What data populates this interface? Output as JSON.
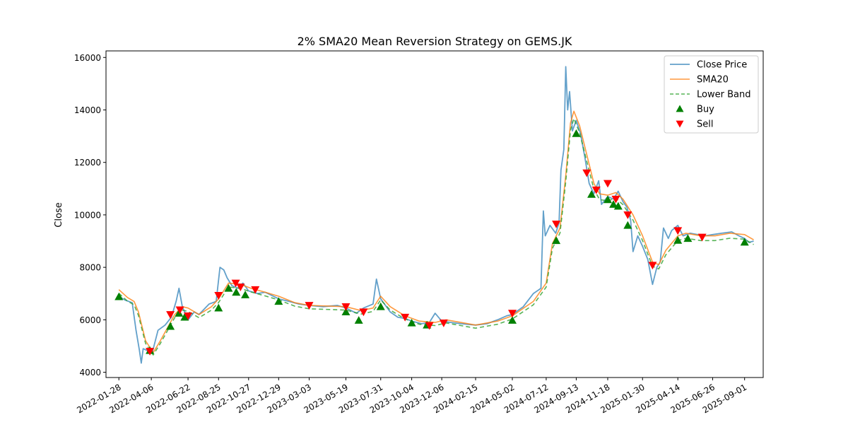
{
  "chart_data": {
    "type": "line",
    "title": "2% SMA20 Mean Reversion Strategy on GEMS.JK",
    "xlabel": "",
    "ylabel": "Close",
    "x_axis_type": "date",
    "xlim": [
      "2022-01-01",
      "2025-10-10"
    ],
    "ylim": [
      3800,
      16250
    ],
    "yticks": [
      4000,
      6000,
      8000,
      10000,
      12000,
      14000,
      16000
    ],
    "xticks": [
      "2022-01-28",
      "2022-04-06",
      "2022-06-22",
      "2022-08-25",
      "2022-10-27",
      "2022-12-29",
      "2023-03-03",
      "2023-05-19",
      "2023-07-31",
      "2023-10-04",
      "2023-12-06",
      "2024-02-15",
      "2024-05-02",
      "2024-07-12",
      "2024-09-13",
      "2024-11-18",
      "2025-01-30",
      "2025-04-14",
      "2025-06-26",
      "2025-09-01"
    ],
    "grid": false,
    "legend_position": "upper right",
    "legend": [
      "Close Price",
      "SMA20",
      "Lower Band",
      "Buy",
      "Sell"
    ],
    "colors": {
      "close": "#1f77b4",
      "sma": "#ff7f0e",
      "lower": "#2ca02c",
      "buy": "#008000",
      "sell": "#ff0000"
    },
    "series": [
      {
        "name": "Close Price",
        "style": "solid",
        "points": [
          [
            "2022-01-28",
            6900
          ],
          [
            "2022-02-10",
            6750
          ],
          [
            "2022-02-25",
            6650
          ],
          [
            "2022-03-05",
            5600
          ],
          [
            "2022-03-12",
            4850
          ],
          [
            "2022-03-16",
            4350
          ],
          [
            "2022-03-20",
            4900
          ],
          [
            "2022-04-01",
            4800
          ],
          [
            "2022-04-08",
            4750
          ],
          [
            "2022-04-20",
            5600
          ],
          [
            "2022-05-05",
            5800
          ],
          [
            "2022-05-18",
            6100
          ],
          [
            "2022-05-28",
            6700
          ],
          [
            "2022-06-03",
            7200
          ],
          [
            "2022-06-10",
            6500
          ],
          [
            "2022-06-22",
            6000
          ],
          [
            "2022-07-05",
            6300
          ],
          [
            "2022-07-15",
            6200
          ],
          [
            "2022-08-05",
            6600
          ],
          [
            "2022-08-20",
            6700
          ],
          [
            "2022-08-28",
            8000
          ],
          [
            "2022-09-05",
            7900
          ],
          [
            "2022-09-12",
            7600
          ],
          [
            "2022-09-22",
            7300
          ],
          [
            "2022-10-05",
            7200
          ],
          [
            "2022-10-15",
            7400
          ],
          [
            "2022-10-27",
            7100
          ],
          [
            "2022-11-15",
            7000
          ],
          [
            "2022-12-01",
            7050
          ],
          [
            "2022-12-29",
            6800
          ],
          [
            "2023-01-20",
            6700
          ],
          [
            "2023-02-10",
            6600
          ],
          [
            "2023-03-03",
            6550
          ],
          [
            "2023-04-01",
            6500
          ],
          [
            "2023-05-01",
            6550
          ],
          [
            "2023-05-19",
            6450
          ],
          [
            "2023-06-10",
            6250
          ],
          [
            "2023-06-25",
            6450
          ],
          [
            "2023-07-15",
            6600
          ],
          [
            "2023-07-22",
            7550
          ],
          [
            "2023-07-31",
            6800
          ],
          [
            "2023-08-20",
            6300
          ],
          [
            "2023-09-05",
            6100
          ],
          [
            "2023-09-20",
            6050
          ],
          [
            "2023-10-04",
            5950
          ],
          [
            "2023-10-25",
            5850
          ],
          [
            "2023-11-10",
            5900
          ],
          [
            "2023-11-22",
            6250
          ],
          [
            "2023-12-06",
            5950
          ],
          [
            "2023-12-25",
            5900
          ],
          [
            "2024-01-15",
            5850
          ],
          [
            "2024-02-15",
            5800
          ],
          [
            "2024-03-10",
            5850
          ],
          [
            "2024-04-01",
            6000
          ],
          [
            "2024-04-20",
            6150
          ],
          [
            "2024-05-02",
            6200
          ],
          [
            "2024-05-25",
            6500
          ],
          [
            "2024-06-15",
            7000
          ],
          [
            "2024-07-01",
            7200
          ],
          [
            "2024-07-06",
            10150
          ],
          [
            "2024-07-10",
            9200
          ],
          [
            "2024-07-20",
            9600
          ],
          [
            "2024-08-01",
            9300
          ],
          [
            "2024-08-08",
            9700
          ],
          [
            "2024-08-12",
            11700
          ],
          [
            "2024-08-18",
            12500
          ],
          [
            "2024-08-22",
            15650
          ],
          [
            "2024-08-26",
            14000
          ],
          [
            "2024-08-30",
            14700
          ],
          [
            "2024-09-05",
            13200
          ],
          [
            "2024-09-13",
            13600
          ],
          [
            "2024-09-22",
            13100
          ],
          [
            "2024-10-01",
            12200
          ],
          [
            "2024-10-10",
            11200
          ],
          [
            "2024-10-20",
            10800
          ],
          [
            "2024-10-30",
            11300
          ],
          [
            "2024-11-05",
            10400
          ],
          [
            "2024-11-18",
            10700
          ],
          [
            "2024-11-30",
            10600
          ],
          [
            "2024-12-10",
            10900
          ],
          [
            "2024-12-20",
            10500
          ],
          [
            "2024-12-28",
            10300
          ],
          [
            "2025-01-05",
            9800
          ],
          [
            "2025-01-10",
            8600
          ],
          [
            "2025-01-20",
            9200
          ],
          [
            "2025-01-30",
            8800
          ],
          [
            "2025-02-10",
            8300
          ],
          [
            "2025-02-20",
            7350
          ],
          [
            "2025-03-01",
            8000
          ],
          [
            "2025-03-08",
            8200
          ],
          [
            "2025-03-15",
            9500
          ],
          [
            "2025-03-25",
            9100
          ],
          [
            "2025-04-01",
            9400
          ],
          [
            "2025-04-14",
            9600
          ],
          [
            "2025-04-25",
            9200
          ],
          [
            "2025-05-10",
            9300
          ],
          [
            "2025-05-25",
            9250
          ],
          [
            "2025-06-10",
            9200
          ],
          [
            "2025-06-26",
            9250
          ],
          [
            "2025-07-15",
            9300
          ],
          [
            "2025-08-05",
            9350
          ],
          [
            "2025-08-20",
            9200
          ],
          [
            "2025-09-01",
            9100
          ],
          [
            "2025-09-10",
            8950
          ],
          [
            "2025-09-20",
            9000
          ]
        ]
      },
      {
        "name": "SMA20",
        "style": "solid",
        "points": [
          [
            "2022-01-28",
            7150
          ],
          [
            "2022-02-15",
            6850
          ],
          [
            "2022-03-01",
            6700
          ],
          [
            "2022-03-10",
            6300
          ],
          [
            "2022-03-25",
            5200
          ],
          [
            "2022-04-10",
            4750
          ],
          [
            "2022-04-25",
            5200
          ],
          [
            "2022-05-10",
            5700
          ],
          [
            "2022-05-25",
            6200
          ],
          [
            "2022-06-10",
            6500
          ],
          [
            "2022-06-22",
            6450
          ],
          [
            "2022-07-15",
            6200
          ],
          [
            "2022-08-10",
            6500
          ],
          [
            "2022-08-25",
            6800
          ],
          [
            "2022-09-15",
            7400
          ],
          [
            "2022-10-10",
            7350
          ],
          [
            "2022-11-01",
            7200
          ],
          [
            "2022-12-01",
            7050
          ],
          [
            "2022-12-29",
            6900
          ],
          [
            "2023-02-01",
            6650
          ],
          [
            "2023-03-03",
            6550
          ],
          [
            "2023-05-19",
            6500
          ],
          [
            "2023-06-20",
            6350
          ],
          [
            "2023-07-15",
            6450
          ],
          [
            "2023-07-31",
            6900
          ],
          [
            "2023-08-20",
            6500
          ],
          [
            "2023-09-20",
            6150
          ],
          [
            "2023-10-20",
            5950
          ],
          [
            "2023-11-22",
            5900
          ],
          [
            "2023-12-15",
            6000
          ],
          [
            "2024-01-15",
            5900
          ],
          [
            "2024-02-15",
            5800
          ],
          [
            "2024-04-01",
            5950
          ],
          [
            "2024-05-02",
            6150
          ],
          [
            "2024-06-15",
            6700
          ],
          [
            "2024-07-12",
            7400
          ],
          [
            "2024-07-25",
            8900
          ],
          [
            "2024-08-10",
            9500
          ],
          [
            "2024-08-22",
            11500
          ],
          [
            "2024-09-01",
            13500
          ],
          [
            "2024-09-08",
            13950
          ],
          [
            "2024-09-20",
            13400
          ],
          [
            "2024-10-05",
            12300
          ],
          [
            "2024-10-20",
            11200
          ],
          [
            "2024-11-01",
            10800
          ],
          [
            "2024-11-18",
            10750
          ],
          [
            "2024-12-05",
            10850
          ],
          [
            "2024-12-20",
            10600
          ],
          [
            "2025-01-10",
            10000
          ],
          [
            "2025-01-30",
            9200
          ],
          [
            "2025-02-20",
            8200
          ],
          [
            "2025-03-05",
            8100
          ],
          [
            "2025-03-20",
            8650
          ],
          [
            "2025-04-14",
            9200
          ],
          [
            "2025-05-01",
            9300
          ],
          [
            "2025-06-01",
            9200
          ],
          [
            "2025-07-01",
            9200
          ],
          [
            "2025-08-01",
            9300
          ],
          [
            "2025-09-01",
            9250
          ],
          [
            "2025-09-20",
            9050
          ]
        ]
      },
      {
        "name": "Lower Band",
        "style": "dashed",
        "points": [
          [
            "2022-01-28",
            7010
          ],
          [
            "2022-02-15",
            6710
          ],
          [
            "2022-03-01",
            6570
          ],
          [
            "2022-03-10",
            6170
          ],
          [
            "2022-03-25",
            5100
          ],
          [
            "2022-04-10",
            4660
          ],
          [
            "2022-04-25",
            5100
          ],
          [
            "2022-05-10",
            5590
          ],
          [
            "2022-05-25",
            6080
          ],
          [
            "2022-06-10",
            6370
          ],
          [
            "2022-06-22",
            6320
          ],
          [
            "2022-07-15",
            6080
          ],
          [
            "2022-08-10",
            6370
          ],
          [
            "2022-08-25",
            6660
          ],
          [
            "2022-09-15",
            7250
          ],
          [
            "2022-10-10",
            7200
          ],
          [
            "2022-11-01",
            7060
          ],
          [
            "2022-12-01",
            6910
          ],
          [
            "2022-12-29",
            6760
          ],
          [
            "2023-02-01",
            6520
          ],
          [
            "2023-03-03",
            6420
          ],
          [
            "2023-05-19",
            6370
          ],
          [
            "2023-06-20",
            6220
          ],
          [
            "2023-07-15",
            6320
          ],
          [
            "2023-07-31",
            6760
          ],
          [
            "2023-08-20",
            6370
          ],
          [
            "2023-09-20",
            6030
          ],
          [
            "2023-10-20",
            5830
          ],
          [
            "2023-11-22",
            5780
          ],
          [
            "2023-12-15",
            5880
          ],
          [
            "2024-01-15",
            5780
          ],
          [
            "2024-02-15",
            5680
          ],
          [
            "2024-04-01",
            5830
          ],
          [
            "2024-05-02",
            6030
          ],
          [
            "2024-06-15",
            6570
          ],
          [
            "2024-07-12",
            7250
          ],
          [
            "2024-07-25",
            8720
          ],
          [
            "2024-08-10",
            9310
          ],
          [
            "2024-08-22",
            11270
          ],
          [
            "2024-09-01",
            13230
          ],
          [
            "2024-09-08",
            13670
          ],
          [
            "2024-09-20",
            13130
          ],
          [
            "2024-10-05",
            12050
          ],
          [
            "2024-10-20",
            10980
          ],
          [
            "2024-11-01",
            10580
          ],
          [
            "2024-11-18",
            10540
          ],
          [
            "2024-12-05",
            10630
          ],
          [
            "2024-12-20",
            10390
          ],
          [
            "2025-01-10",
            9800
          ],
          [
            "2025-01-30",
            9020
          ],
          [
            "2025-02-20",
            8040
          ],
          [
            "2025-03-05",
            7940
          ],
          [
            "2025-03-20",
            8480
          ],
          [
            "2025-04-14",
            9020
          ],
          [
            "2025-05-01",
            9110
          ],
          [
            "2025-06-01",
            9020
          ],
          [
            "2025-07-01",
            9020
          ],
          [
            "2025-08-01",
            9110
          ],
          [
            "2025-09-01",
            9070
          ],
          [
            "2025-09-20",
            8870
          ]
        ]
      }
    ],
    "buy_points": [
      [
        "2022-01-28",
        6880
      ],
      [
        "2022-04-03",
        4830
      ],
      [
        "2022-05-16",
        5750
      ],
      [
        "2022-06-03",
        6250
      ],
      [
        "2022-06-15",
        6100
      ],
      [
        "2022-08-25",
        6450
      ],
      [
        "2022-09-15",
        7200
      ],
      [
        "2022-10-01",
        7050
      ],
      [
        "2022-10-20",
        6950
      ],
      [
        "2022-12-29",
        6700
      ],
      [
        "2023-05-19",
        6300
      ],
      [
        "2023-06-15",
        5980
      ],
      [
        "2023-07-31",
        6500
      ],
      [
        "2023-10-04",
        5880
      ],
      [
        "2023-11-05",
        5800
      ],
      [
        "2024-05-02",
        5980
      ],
      [
        "2024-08-02",
        9020
      ],
      [
        "2024-09-13",
        13100
      ],
      [
        "2024-10-15",
        10780
      ],
      [
        "2024-11-18",
        10580
      ],
      [
        "2024-11-30",
        10400
      ],
      [
        "2024-12-10",
        10330
      ],
      [
        "2024-12-30",
        9600
      ],
      [
        "2025-04-14",
        9030
      ],
      [
        "2025-05-05",
        9100
      ],
      [
        "2025-09-01",
        8960
      ]
    ],
    "sell_points": [
      [
        "2022-04-03",
        4800
      ],
      [
        "2022-05-16",
        6200
      ],
      [
        "2022-06-05",
        6380
      ],
      [
        "2022-06-22",
        6150
      ],
      [
        "2022-08-25",
        6930
      ],
      [
        "2022-09-30",
        7400
      ],
      [
        "2022-10-10",
        7250
      ],
      [
        "2022-11-10",
        7150
      ],
      [
        "2023-03-03",
        6550
      ],
      [
        "2023-05-19",
        6500
      ],
      [
        "2023-06-25",
        6300
      ],
      [
        "2023-09-20",
        6100
      ],
      [
        "2023-11-10",
        5780
      ],
      [
        "2023-12-10",
        5880
      ],
      [
        "2024-05-02",
        6250
      ],
      [
        "2024-08-02",
        9650
      ],
      [
        "2024-10-05",
        11600
      ],
      [
        "2024-10-25",
        10950
      ],
      [
        "2024-11-18",
        11200
      ],
      [
        "2024-12-05",
        10600
      ],
      [
        "2024-12-30",
        10000
      ],
      [
        "2025-02-20",
        8080
      ],
      [
        "2025-04-14",
        9400
      ],
      [
        "2025-06-04",
        9150
      ]
    ]
  }
}
